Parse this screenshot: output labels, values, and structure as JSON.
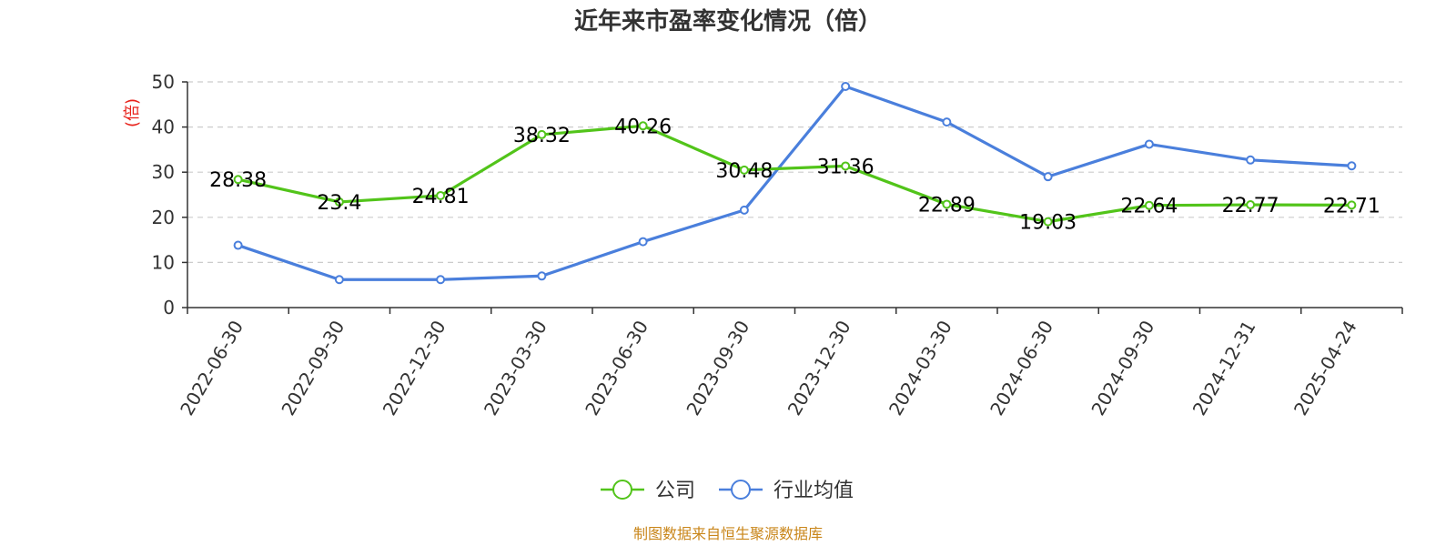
{
  "chart_data": {
    "type": "line",
    "title": "近年来市盈率变化情况（倍）",
    "ylabel": "(倍)",
    "xlabel": "",
    "x": [
      "2022-06-30",
      "2022-09-30",
      "2022-12-30",
      "2023-03-30",
      "2023-06-30",
      "2023-09-30",
      "2023-12-30",
      "2024-03-30",
      "2024-06-30",
      "2024-09-30",
      "2024-12-31",
      "2025-04-24"
    ],
    "ylim": [
      0,
      50
    ],
    "yticks": [
      0,
      10,
      20,
      30,
      40,
      50
    ],
    "grid": true,
    "legend_position": "bottom-center",
    "series": [
      {
        "name": "公司",
        "color": "#52c41a",
        "values": [
          28.38,
          23.4,
          24.81,
          38.32,
          40.26,
          30.48,
          31.36,
          22.89,
          19.03,
          22.64,
          22.77,
          22.71
        ],
        "labels": [
          "28.38",
          "23.4",
          "24.81",
          "38.32",
          "40.26",
          "30.48",
          "31.36",
          "22.89",
          "19.03",
          "22.64",
          "22.77",
          "22.71"
        ]
      },
      {
        "name": "行业均值",
        "color": "#4a7fdc",
        "values": [
          13.8,
          6.2,
          6.2,
          7.0,
          14.6,
          21.6,
          49.0,
          41.1,
          29.0,
          36.2,
          32.7,
          31.4
        ]
      }
    ],
    "source": "制图数据来自恒生聚源数据库",
    "ylabel_color": "#e8221b",
    "source_color": "#c9861a"
  }
}
